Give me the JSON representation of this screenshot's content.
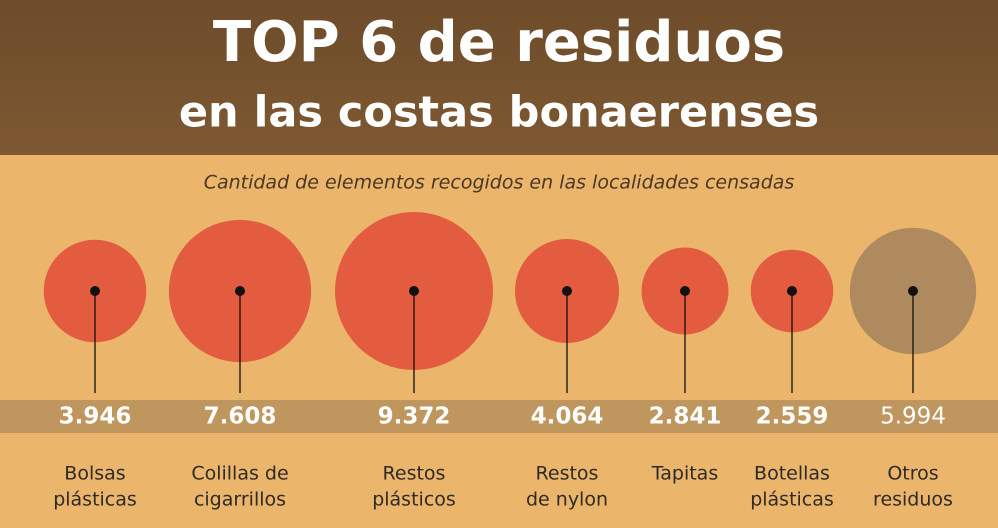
{
  "chart_data": {
    "type": "bubble",
    "title": [
      "TOP 6 de residuos",
      "en las costas bonaerenses"
    ],
    "subtitle": "Cantidad de elementos recogidos en las localidades censadas",
    "categories": [
      [
        "Bolsas",
        "plásticas"
      ],
      [
        "Colillas de",
        "cigarrillos"
      ],
      [
        "Restos",
        "plásticos"
      ],
      [
        "Restos",
        "de nylon"
      ],
      [
        "Tapitas"
      ],
      [
        "Botellas",
        "plásticas"
      ],
      [
        "Otros",
        "residuos"
      ]
    ],
    "values": [
      3946,
      7608,
      9372,
      4064,
      2841,
      2559,
      5994
    ],
    "value_labels": [
      "3.946",
      "7.608",
      "9.372",
      "4.064",
      "2.841",
      "2.559",
      "5.994"
    ],
    "colors": [
      "#e2553c",
      "#e2553c",
      "#e2553c",
      "#e2553c",
      "#e2553c",
      "#e2553c",
      "#a8875d"
    ]
  }
}
